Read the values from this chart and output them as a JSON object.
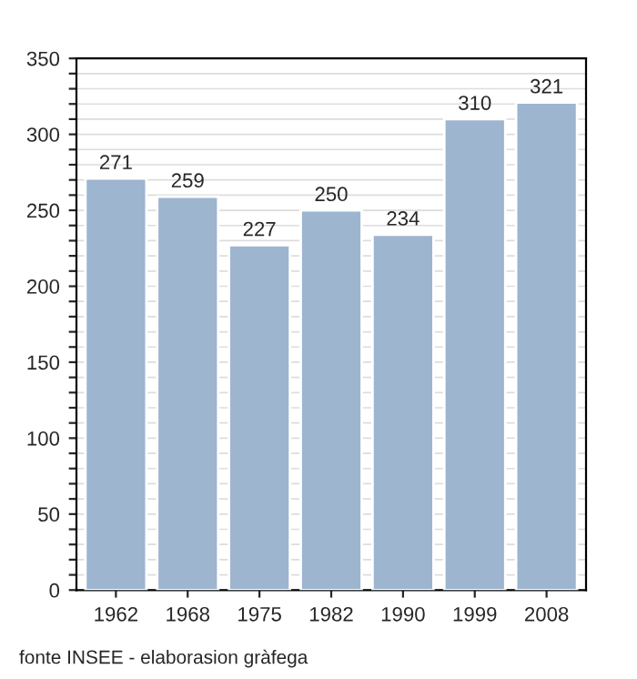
{
  "chart_data": {
    "type": "bar",
    "categories": [
      "1962",
      "1968",
      "1975",
      "1982",
      "1990",
      "1999",
      "2008"
    ],
    "values": [
      271,
      259,
      227,
      250,
      234,
      310,
      321
    ],
    "color": "#9db5cf",
    "data_labels": true,
    "ylim": [
      0,
      350
    ],
    "yticks": [
      0,
      {
        "value": 10,
        "label": null
      },
      {
        "value": 20,
        "label": null
      },
      {
        "value": 30,
        "label": null
      },
      {
        "value": 40,
        "label": null
      },
      50,
      {
        "value": 60,
        "label": null
      },
      {
        "value": 70,
        "label": null
      },
      {
        "value": 80,
        "label": null
      },
      {
        "value": 90,
        "label": null
      },
      100,
      {
        "value": 110,
        "label": null
      },
      {
        "value": 120,
        "label": null
      },
      {
        "value": 130,
        "label": null
      },
      {
        "value": 140,
        "label": null
      },
      150,
      {
        "value": 160,
        "label": null
      },
      {
        "value": 170,
        "label": null
      },
      {
        "value": 180,
        "label": null
      },
      {
        "value": 190,
        "label": null
      },
      200,
      {
        "value": 210,
        "label": null
      },
      {
        "value": 220,
        "label": null
      },
      {
        "value": 230,
        "label": null
      },
      {
        "value": 240,
        "label": null
      },
      250,
      {
        "value": 260,
        "label": null
      },
      {
        "value": 270,
        "label": null
      },
      {
        "value": 280,
        "label": null
      },
      {
        "value": 290,
        "label": null
      },
      300,
      {
        "value": 310,
        "label": null
      },
      {
        "value": 320,
        "label": null
      },
      {
        "value": 330,
        "label": null
      },
      {
        "value": 340,
        "label": null
      },
      350
    ],
    "grid": "y",
    "annotations": [
      "fonte INSEE - elaborasion gràfega"
    ]
  }
}
